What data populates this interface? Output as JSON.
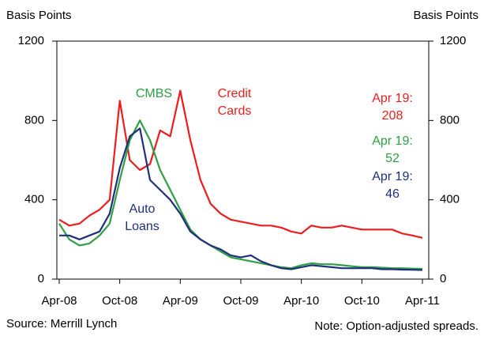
{
  "chart_data": {
    "type": "line",
    "y_label": "Basis Points",
    "y2_label": "Basis Points",
    "source": "Source: Merrill Lynch",
    "note": "Note: Option-adjusted spreads.",
    "end_label": "Apr 19:",
    "x": [
      "2008-04",
      "2008-05",
      "2008-06",
      "2008-07",
      "2008-08",
      "2008-09",
      "2008-10",
      "2008-11",
      "2008-12",
      "2009-01",
      "2009-02",
      "2009-03",
      "2009-04",
      "2009-05",
      "2009-06",
      "2009-07",
      "2009-08",
      "2009-09",
      "2009-10",
      "2009-11",
      "2009-12",
      "2010-01",
      "2010-02",
      "2010-03",
      "2010-04",
      "2010-05",
      "2010-06",
      "2010-07",
      "2010-08",
      "2010-09",
      "2010-10",
      "2010-11",
      "2010-12",
      "2011-01",
      "2011-02",
      "2011-03",
      "2011-04"
    ],
    "xlim": [
      "2008-04",
      "2011-04"
    ],
    "xticks": [
      {
        "value": "2008-04",
        "label": "Apr-08"
      },
      {
        "value": "2008-10",
        "label": "Oct-08"
      },
      {
        "value": "2009-04",
        "label": "Apr-09"
      },
      {
        "value": "2009-10",
        "label": "Oct-09"
      },
      {
        "value": "2010-04",
        "label": "Apr-10"
      },
      {
        "value": "2010-10",
        "label": "Oct-10"
      },
      {
        "value": "2011-04",
        "label": "Apr-11"
      }
    ],
    "ylim": [
      0,
      1200
    ],
    "yticks": [
      0,
      400,
      800,
      1200
    ],
    "y2lim": [
      0,
      1200
    ],
    "y2ticks": [
      0,
      400,
      800,
      1200
    ],
    "series": [
      {
        "name": "Credit Cards",
        "color": "#ee1c1c",
        "values": [
          300,
          270,
          280,
          320,
          350,
          400,
          900,
          600,
          550,
          580,
          750,
          720,
          950,
          700,
          500,
          380,
          330,
          300,
          290,
          280,
          270,
          270,
          260,
          240,
          230,
          270,
          260,
          260,
          270,
          260,
          250,
          250,
          250,
          250,
          230,
          220,
          208
        ]
      },
      {
        "name": "CMBS",
        "color": "#2ea043",
        "values": [
          280,
          200,
          170,
          180,
          220,
          280,
          500,
          700,
          800,
          700,
          550,
          450,
          350,
          250,
          200,
          170,
          140,
          110,
          100,
          90,
          80,
          70,
          60,
          55,
          70,
          80,
          75,
          75,
          70,
          65,
          60,
          60,
          58,
          55,
          55,
          53,
          52
        ]
      },
      {
        "name": "Auto Loans",
        "color": "#1f2f7a",
        "values": [
          220,
          220,
          200,
          220,
          240,
          330,
          560,
          720,
          760,
          500,
          450,
          400,
          330,
          240,
          200,
          170,
          150,
          120,
          110,
          120,
          90,
          70,
          55,
          50,
          60,
          70,
          65,
          60,
          55,
          55,
          55,
          55,
          50,
          50,
          48,
          47,
          46
        ]
      }
    ]
  }
}
